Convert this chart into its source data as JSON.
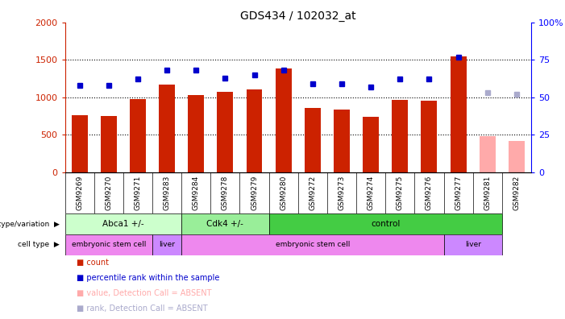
{
  "title": "GDS434 / 102032_at",
  "samples": [
    "GSM9269",
    "GSM9270",
    "GSM9271",
    "GSM9283",
    "GSM9284",
    "GSM9278",
    "GSM9279",
    "GSM9280",
    "GSM9272",
    "GSM9273",
    "GSM9274",
    "GSM9275",
    "GSM9276",
    "GSM9277",
    "GSM9281",
    "GSM9282"
  ],
  "counts": [
    760,
    755,
    975,
    1165,
    1025,
    1075,
    1100,
    1380,
    855,
    835,
    745,
    965,
    960,
    1545,
    480,
    420
  ],
  "ranks": [
    58,
    58,
    62,
    68,
    68,
    63,
    65,
    68,
    59,
    59,
    57,
    62,
    62,
    77,
    null,
    null
  ],
  "absent_counts": [
    null,
    null,
    null,
    null,
    null,
    null,
    null,
    null,
    null,
    null,
    null,
    null,
    null,
    null,
    480,
    420
  ],
  "absent_ranks": [
    null,
    null,
    null,
    null,
    null,
    null,
    null,
    null,
    null,
    null,
    null,
    null,
    null,
    null,
    53,
    52
  ],
  "bar_color_normal": "#cc2200",
  "bar_color_absent": "#ffaaaa",
  "rank_color_normal": "#0000cc",
  "rank_color_absent": "#aaaacc",
  "ylim_left": [
    0,
    2000
  ],
  "ylim_right": [
    0,
    100
  ],
  "yticks_left": [
    0,
    500,
    1000,
    1500,
    2000
  ],
  "yticks_right": [
    0,
    25,
    50,
    75,
    100
  ],
  "ytick_labels_right": [
    "0",
    "25",
    "50",
    "75",
    "100%"
  ],
  "genotype_groups": [
    {
      "label": "Abca1 +/-",
      "start": 0,
      "end": 4,
      "color": "#ccffcc"
    },
    {
      "label": "Cdk4 +/-",
      "start": 4,
      "end": 7,
      "color": "#99ee99"
    },
    {
      "label": "control",
      "start": 7,
      "end": 15,
      "color": "#44cc44"
    }
  ],
  "celltype_groups": [
    {
      "label": "embryonic stem cell",
      "start": 0,
      "end": 3,
      "color": "#ee88ee"
    },
    {
      "label": "liver",
      "start": 3,
      "end": 4,
      "color": "#cc88ff"
    },
    {
      "label": "embryonic stem cell",
      "start": 4,
      "end": 13,
      "color": "#ee88ee"
    },
    {
      "label": "liver",
      "start": 13,
      "end": 15,
      "color": "#cc88ff"
    }
  ],
  "legend_items": [
    {
      "label": "count",
      "color": "#cc2200"
    },
    {
      "label": "percentile rank within the sample",
      "color": "#0000cc"
    },
    {
      "label": "value, Detection Call = ABSENT",
      "color": "#ffaaaa"
    },
    {
      "label": "rank, Detection Call = ABSENT",
      "color": "#aaaacc"
    }
  ],
  "bar_width": 0.55,
  "dpi": 100,
  "figsize": [
    7.01,
    3.96
  ]
}
